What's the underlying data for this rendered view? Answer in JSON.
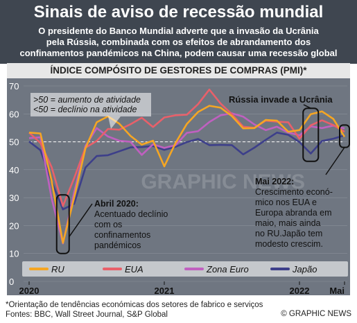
{
  "header": {
    "title": "Sinais de aviso de recessão mundial",
    "subtitle_line1": "O presidente do Banco Mundial adverte que a invasão da Ucrânia",
    "subtitle_line2": "pela Rússia, combinada com os efeitos de abrandamento dos",
    "subtitle_line3": "confinamentos pandémicos na China, podem causar uma recessão global"
  },
  "section_title": "ÍNDICE COMPÓSITO DE GESTORES DE COMPRAS (PMI)*",
  "annotations": {
    "threshold_line1": ">50 = aumento de atividade",
    "threshold_line2": "<50 = declínio na atividade",
    "russia": "Rússia invade a Ucrânia",
    "april_title": "Abril 2020:",
    "april_line1": "Acentuado declínio",
    "april_line2": "com os",
    "april_line3": "confinamentos",
    "april_line4": "pandémicos",
    "may_title": "Mai 2022:",
    "may_line1": "Crescimento econó-",
    "may_line2": "mico nos EUA e",
    "may_line3": "Europa abranda em",
    "may_line4": "maio, mais ainda",
    "may_line5": "no RU.Japão tem",
    "may_line6": "modesto crescim."
  },
  "watermark": "GRAPHIC NEWS",
  "footer": {
    "note": "*Orientação de tendências económicas dos setores de fabrico e serviços",
    "sources": "Fontes: BBC, Wall Street Journal, S&P Global",
    "brand": "© GRAPHIC NEWS"
  },
  "colors": {
    "RU": "#f5a623",
    "EUA": "#e8606a",
    "Zona Euro": "#c060c0",
    "Japão": "#3d3f8a"
  },
  "chart_data": {
    "type": "line",
    "title": "ÍNDICE COMPÓSITO DE GESTORES DE COMPRAS (PMI)*",
    "x": [
      "2020-01",
      "2020-02",
      "2020-03",
      "2020-04",
      "2020-05",
      "2020-06",
      "2020-07",
      "2020-08",
      "2020-09",
      "2020-10",
      "2020-11",
      "2020-12",
      "2021-01",
      "2021-02",
      "2021-03",
      "2021-04",
      "2021-05",
      "2021-06",
      "2021-07",
      "2021-08",
      "2021-09",
      "2021-10",
      "2021-11",
      "2021-12",
      "2022-01",
      "2022-02",
      "2022-03",
      "2022-04",
      "2022-05"
    ],
    "x_tick_labels": [
      "2020",
      "2021",
      "2022",
      "Mai"
    ],
    "x_tick_values": [
      "2020-01",
      "2021-01",
      "2022-01",
      "2022-05"
    ],
    "ylim": [
      0,
      70
    ],
    "y_ticks": [
      0,
      10,
      20,
      30,
      40,
      50,
      60,
      70
    ],
    "reference_line": 50,
    "legend_position": "bottom",
    "series": [
      {
        "name": "RU",
        "values": [
          53.3,
          53.0,
          36.0,
          13.8,
          30.0,
          47.7,
          57.0,
          59.1,
          56.5,
          52.1,
          49.0,
          50.4,
          41.2,
          49.6,
          56.4,
          60.7,
          62.9,
          62.2,
          59.2,
          54.8,
          54.9,
          57.8,
          57.6,
          53.6,
          54.2,
          59.9,
          60.9,
          58.2,
          51.8
        ]
      },
      {
        "name": "EUA",
        "values": [
          53.3,
          49.6,
          40.9,
          27.0,
          37.0,
          47.9,
          50.3,
          54.6,
          54.3,
          56.3,
          58.6,
          55.3,
          58.7,
          59.5,
          59.7,
          63.5,
          68.7,
          63.7,
          59.9,
          55.4,
          55.0,
          57.6,
          57.2,
          57.0,
          51.1,
          55.9,
          57.7,
          56.0,
          53.6
        ]
      },
      {
        "name": "Zona Euro",
        "values": [
          51.3,
          51.6,
          29.7,
          13.6,
          31.9,
          48.5,
          54.9,
          51.9,
          50.4,
          50.0,
          45.3,
          49.1,
          47.8,
          48.8,
          53.2,
          53.8,
          57.1,
          59.5,
          60.2,
          59.0,
          56.2,
          54.2,
          55.4,
          53.3,
          52.3,
          55.5,
          54.9,
          55.8,
          54.8
        ]
      },
      {
        "name": "Japão",
        "values": [
          50.1,
          47.0,
          35.8,
          25.8,
          27.8,
          40.8,
          44.9,
          45.2,
          46.6,
          48.0,
          48.1,
          48.5,
          47.1,
          48.2,
          49.9,
          51.0,
          48.8,
          48.9,
          48.8,
          45.5,
          47.9,
          50.7,
          53.3,
          52.5,
          49.9,
          45.8,
          50.3,
          51.1,
          52.3
        ]
      }
    ]
  }
}
